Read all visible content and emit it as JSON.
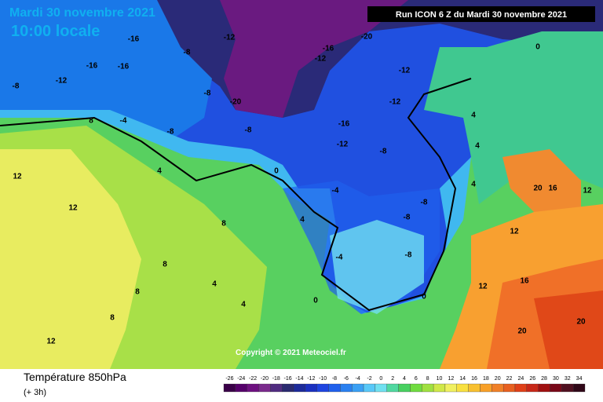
{
  "header": {
    "date": "Mardi 30 novembre 2021",
    "time": "10:00 locale",
    "run": "Run ICON 6 Z du Mardi 30 novembre 2021"
  },
  "map": {
    "copyright": "Copyright © 2021 Meteociel.fr",
    "labels": [
      -16,
      -12,
      -8,
      -16,
      -16,
      -12,
      -8,
      -8,
      -20,
      -12,
      -16,
      -20,
      -12,
      -12,
      -16,
      -12,
      -8,
      -8,
      -8,
      -4,
      8,
      4,
      0,
      12,
      12,
      8,
      4,
      -4,
      -8,
      -8,
      4,
      4,
      20,
      16,
      12,
      8,
      4,
      4,
      0,
      -4,
      -8,
      0,
      16,
      20,
      20,
      12,
      8,
      8,
      0,
      4,
      12,
      12
    ]
  },
  "footer": {
    "title": "Température 850hPa",
    "step": "(+ 3h)"
  },
  "legend": {
    "values": [
      -26,
      -24,
      -22,
      -20,
      -18,
      -16,
      -14,
      -12,
      -10,
      -8,
      -6,
      -4,
      -2,
      0,
      2,
      4,
      6,
      8,
      10,
      12,
      14,
      16,
      18,
      20,
      22,
      24,
      26,
      28,
      30,
      32,
      34
    ],
    "colors": [
      "#3a0048",
      "#55006a",
      "#6e1080",
      "#7a2a8c",
      "#502c80",
      "#2a2a70",
      "#1c2a9a",
      "#1a30c0",
      "#1e44e0",
      "#2060ec",
      "#2a80f0",
      "#3aa0f4",
      "#58c8f8",
      "#70e0f0",
      "#50d8a0",
      "#48d060",
      "#70dc40",
      "#a0e040",
      "#d0e848",
      "#f0f060",
      "#f8e040",
      "#f8c030",
      "#f8a028",
      "#f08028",
      "#e86020",
      "#e04018",
      "#c82818",
      "#a01010",
      "#780818",
      "#501020",
      "#300818"
    ]
  }
}
